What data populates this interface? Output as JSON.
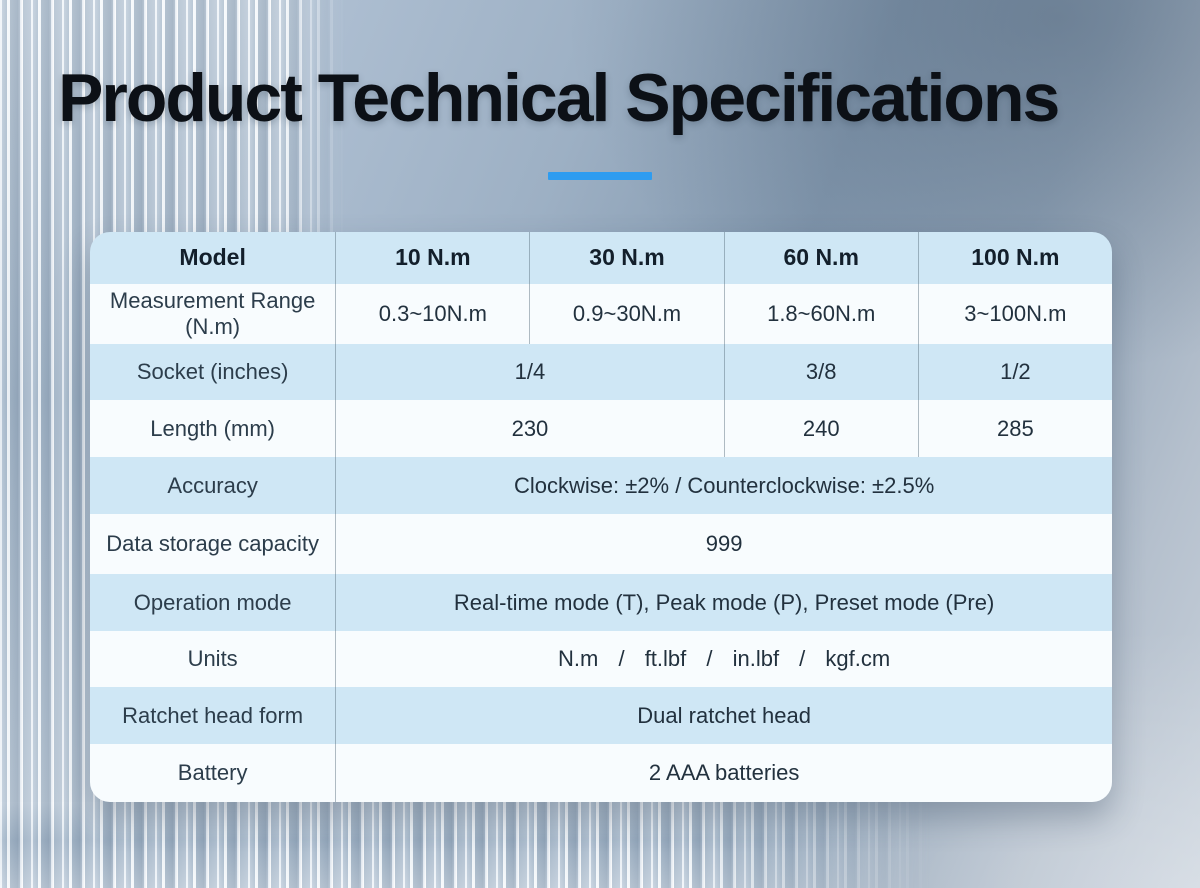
{
  "page": {
    "title": "Product Technical Specifications"
  },
  "theme": {
    "accent": "#2e9cf0",
    "row_blue": "#cfe7f5",
    "row_white": "#f8fcfe",
    "title_color": "#0c1016"
  },
  "table": {
    "header": {
      "label": "Model",
      "cells": [
        "10 N.m",
        "30 N.m",
        "60 N.m",
        "100 N.m"
      ]
    },
    "rows": [
      {
        "label": "Measurement Range (N.m)",
        "cells": [
          "0.3~10N.m",
          "0.9~30N.m",
          "1.8~60N.m",
          "3~100N.m"
        ]
      },
      {
        "label": "Socket (inches)",
        "cells": [
          "1/4",
          "3/8",
          "1/2"
        ]
      },
      {
        "label": "Length (mm)",
        "cells": [
          "230",
          "240",
          "285"
        ]
      },
      {
        "label": "Accuracy",
        "cells": [
          "Clockwise: ±2% / Counterclockwise: ±2.5%"
        ]
      },
      {
        "label": "Data storage capacity",
        "cells": [
          "999"
        ]
      },
      {
        "label": "Operation mode",
        "cells": [
          "Real-time mode (T), Peak mode (P), Preset mode (Pre)"
        ]
      },
      {
        "label": "Units",
        "cells": [
          "N.m / ft.lbf / in.lbf / kgf.cm"
        ]
      },
      {
        "label": "Ratchet head form",
        "cells": [
          "Dual ratchet head"
        ]
      },
      {
        "label": "Battery",
        "cells": [
          "2 AAA batteries"
        ]
      }
    ]
  }
}
